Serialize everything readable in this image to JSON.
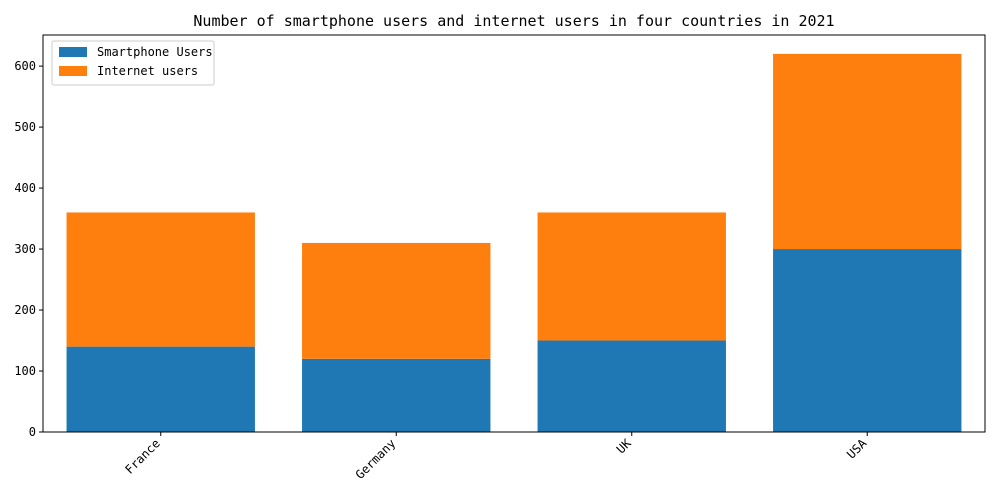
{
  "chart_data": {
    "type": "bar",
    "stacked": true,
    "title": "Number of smartphone users and internet users in four countries in 2021",
    "xlabel": "",
    "ylabel": "",
    "categories": [
      "France",
      "Germany",
      "UK",
      "USA"
    ],
    "series": [
      {
        "name": "Smartphone Users",
        "values": [
          140,
          120,
          150,
          300
        ],
        "color": "#1f77b4"
      },
      {
        "name": "Internet users",
        "values": [
          220,
          190,
          210,
          320
        ],
        "color": "#ff7f0e"
      }
    ],
    "ylim": [
      0,
      651
    ],
    "yticks": [
      0,
      100,
      200,
      300,
      400,
      500,
      600
    ],
    "xtick_rotation": 45,
    "legend_position": "upper-left",
    "grid": false
  }
}
